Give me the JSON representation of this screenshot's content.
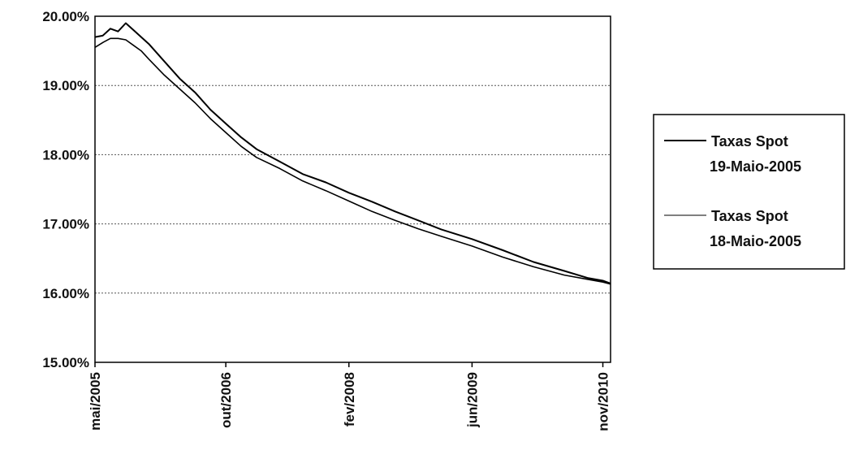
{
  "chart_data": {
    "type": "line",
    "title": "",
    "xlabel": "",
    "ylabel": "",
    "xlim": [
      "2005-05",
      "2010-12"
    ],
    "ylim": [
      15.0,
      20.0
    ],
    "yticks": [
      {
        "value": 20.0,
        "label": "20.00%"
      },
      {
        "value": 19.0,
        "label": "19.00%"
      },
      {
        "value": 18.0,
        "label": "18.00%"
      },
      {
        "value": 17.0,
        "label": "17.00%"
      },
      {
        "value": 16.0,
        "label": "16.00%"
      },
      {
        "value": 15.0,
        "label": "15.00%"
      }
    ],
    "xticks": [
      {
        "value": "2005-05",
        "label": "mai/2005"
      },
      {
        "value": "2006-10",
        "label": "out/2006"
      },
      {
        "value": "2008-02",
        "label": "fev/2008"
      },
      {
        "value": "2009-06",
        "label": "jun/2009"
      },
      {
        "value": "2010-11",
        "label": "nov/2010"
      }
    ],
    "grid": "horizontal-dotted",
    "legend_position": "right",
    "series": [
      {
        "name": "Taxas Spot 19-Maio-2005",
        "color": "#000000",
        "points": [
          [
            "2005-05",
            19.7
          ],
          [
            "2005-06",
            19.72
          ],
          [
            "2005-07",
            19.82
          ],
          [
            "2005-08",
            19.78
          ],
          [
            "2005-09",
            19.9
          ],
          [
            "2005-10",
            19.8
          ],
          [
            "2005-11",
            19.7
          ],
          [
            "2005-12",
            19.6
          ],
          [
            "2006-02",
            19.35
          ],
          [
            "2006-04",
            19.1
          ],
          [
            "2006-06",
            18.9
          ],
          [
            "2006-08",
            18.65
          ],
          [
            "2006-10",
            18.45
          ],
          [
            "2006-12",
            18.25
          ],
          [
            "2007-02",
            18.08
          ],
          [
            "2007-05",
            17.9
          ],
          [
            "2007-08",
            17.72
          ],
          [
            "2007-11",
            17.6
          ],
          [
            "2008-02",
            17.45
          ],
          [
            "2008-05",
            17.32
          ],
          [
            "2008-08",
            17.18
          ],
          [
            "2008-11",
            17.05
          ],
          [
            "2009-02",
            16.92
          ],
          [
            "2009-06",
            16.78
          ],
          [
            "2009-10",
            16.62
          ],
          [
            "2010-02",
            16.45
          ],
          [
            "2010-06",
            16.32
          ],
          [
            "2010-09",
            16.22
          ],
          [
            "2010-11",
            16.18
          ],
          [
            "2010-12",
            16.14
          ]
        ]
      },
      {
        "name": "Taxas Spot 18-Maio-2005",
        "color": "#000000",
        "points": [
          [
            "2005-05",
            19.55
          ],
          [
            "2005-06",
            19.62
          ],
          [
            "2005-07",
            19.68
          ],
          [
            "2005-08",
            19.68
          ],
          [
            "2005-09",
            19.66
          ],
          [
            "2005-10",
            19.58
          ],
          [
            "2005-11",
            19.5
          ],
          [
            "2005-12",
            19.38
          ],
          [
            "2006-02",
            19.15
          ],
          [
            "2006-04",
            18.95
          ],
          [
            "2006-06",
            18.75
          ],
          [
            "2006-08",
            18.52
          ],
          [
            "2006-10",
            18.32
          ],
          [
            "2006-12",
            18.12
          ],
          [
            "2007-02",
            17.96
          ],
          [
            "2007-05",
            17.8
          ],
          [
            "2007-08",
            17.62
          ],
          [
            "2007-11",
            17.48
          ],
          [
            "2008-02",
            17.33
          ],
          [
            "2008-05",
            17.18
          ],
          [
            "2008-08",
            17.05
          ],
          [
            "2008-11",
            16.93
          ],
          [
            "2009-02",
            16.82
          ],
          [
            "2009-06",
            16.68
          ],
          [
            "2009-10",
            16.52
          ],
          [
            "2010-02",
            16.38
          ],
          [
            "2010-06",
            16.26
          ],
          [
            "2010-09",
            16.2
          ],
          [
            "2010-11",
            16.16
          ],
          [
            "2010-12",
            16.13
          ]
        ]
      }
    ],
    "legend": [
      {
        "line1": "Taxas Spot",
        "line2": "19-Maio-2005"
      },
      {
        "line1": "Taxas Spot",
        "line2": "18-Maio-2005"
      }
    ]
  }
}
